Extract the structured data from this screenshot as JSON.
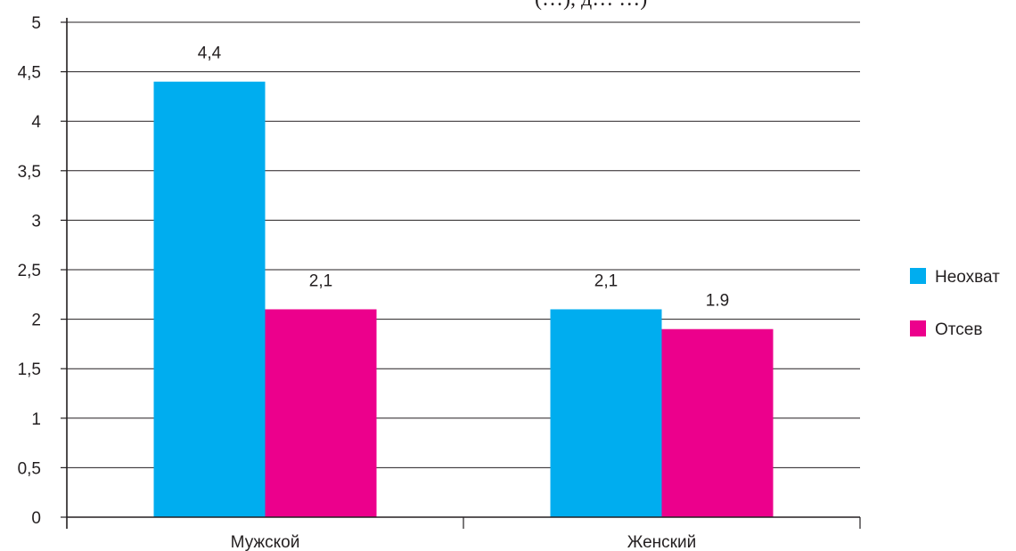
{
  "chart_data": {
    "type": "bar",
    "title_fragment": "(…), д… …)",
    "categories": [
      "Мужской",
      "Женский"
    ],
    "series": [
      {
        "name": "Неохват",
        "color": "#00adef",
        "values": [
          4.4,
          2.1
        ],
        "value_labels": [
          "4,4",
          "2,1"
        ]
      },
      {
        "name": "Отсев",
        "color": "#ec008c",
        "values": [
          2.1,
          1.9
        ],
        "value_labels": [
          "2,1",
          "1.9"
        ]
      }
    ],
    "y_ticks": [
      {
        "value": 0,
        "label": "0"
      },
      {
        "value": 0.5,
        "label": "0,5"
      },
      {
        "value": 1,
        "label": "1"
      },
      {
        "value": 1.5,
        "label": "1,5"
      },
      {
        "value": 2,
        "label": "2"
      },
      {
        "value": 2.5,
        "label": "2,5"
      },
      {
        "value": 3,
        "label": "3"
      },
      {
        "value": 3.5,
        "label": "3,5"
      },
      {
        "value": 4,
        "label": "4"
      },
      {
        "value": 4.5,
        "label": "4,5"
      },
      {
        "value": 5,
        "label": "5"
      }
    ],
    "ylim": [
      0,
      5
    ],
    "xlabel": "",
    "ylabel": "",
    "grid": true,
    "legend_position": "right"
  }
}
